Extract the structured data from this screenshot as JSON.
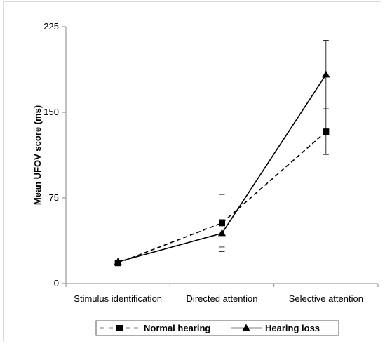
{
  "chart_data": {
    "type": "line",
    "title": "",
    "xlabel": "",
    "ylabel": "Mean UFOV score (ms)",
    "categories": [
      "Stimulus identification",
      "Directed attention",
      "Selective attention"
    ],
    "ylim": [
      0,
      225
    ],
    "yticks": [
      0,
      75,
      150,
      225
    ],
    "grid": false,
    "legend_position": "bottom",
    "series": [
      {
        "name": "Normal hearing",
        "values": [
          18,
          53,
          133
        ],
        "error": [
          null,
          25,
          20
        ],
        "line_style": "dashed",
        "marker": "square",
        "color": "#000000"
      },
      {
        "name": "Hearing loss",
        "values": [
          19,
          44,
          183
        ],
        "error": [
          null,
          12,
          30
        ],
        "line_style": "solid",
        "marker": "triangle",
        "color": "#000000"
      }
    ]
  }
}
